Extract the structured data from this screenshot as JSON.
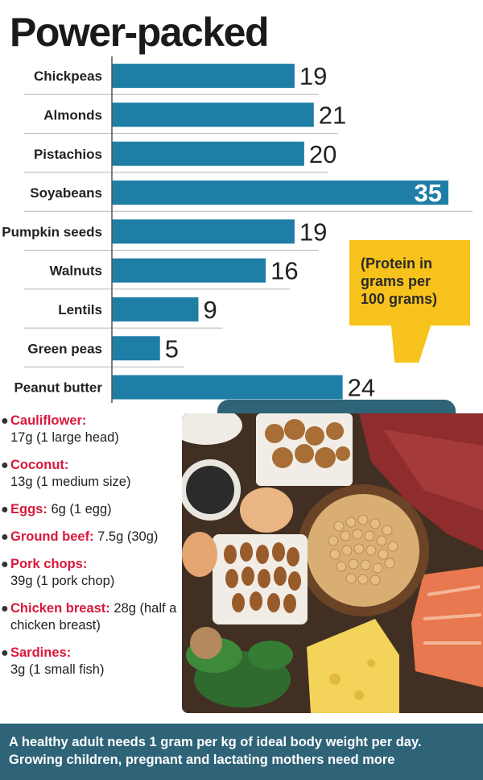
{
  "title": "Power-packed",
  "chart_data": {
    "type": "bar",
    "orientation": "horizontal",
    "categories": [
      "Chickpeas",
      "Almonds",
      "Pistachios",
      "Soyabeans",
      "Pumpkin seeds",
      "Walnuts",
      "Lentils",
      "Green peas",
      "Peanut butter"
    ],
    "values": [
      19,
      21,
      20,
      35,
      19,
      16,
      9,
      5,
      24
    ],
    "highlight_index": 3,
    "bar_color": "#1e7ea6",
    "annotation": "(Protein in grams per 100 grams)",
    "xlim": [
      0,
      35
    ]
  },
  "callout": {
    "lines": [
      "(Protein in",
      "grams per",
      "100 grams)"
    ]
  },
  "foods": [
    {
      "name": "Cauliflower:",
      "detail": "17g (1 large head)"
    },
    {
      "name": "Coconut:",
      "detail": "13g (1 medium size)"
    },
    {
      "name": "Eggs:",
      "detail": "6g (1 egg)"
    },
    {
      "name": "Ground beef:",
      "detail": "7.5g (30g)"
    },
    {
      "name": "Pork chops:",
      "detail": "39g (1 pork chop)"
    },
    {
      "name": "Chicken breast:",
      "detail": "28g (half a chicken breast)"
    },
    {
      "name": "Sardines:",
      "detail": "3g (1 small fish)"
    }
  ],
  "footer": {
    "line1": "A healthy adult needs 1 gram per kg of ideal body weight per day.",
    "line2": "Growing children, pregnant and lactating mothers need more"
  },
  "colors": {
    "accent_red": "#d8193a",
    "callout_yellow": "#f7c21b",
    "footer_teal": "#2f6378"
  }
}
